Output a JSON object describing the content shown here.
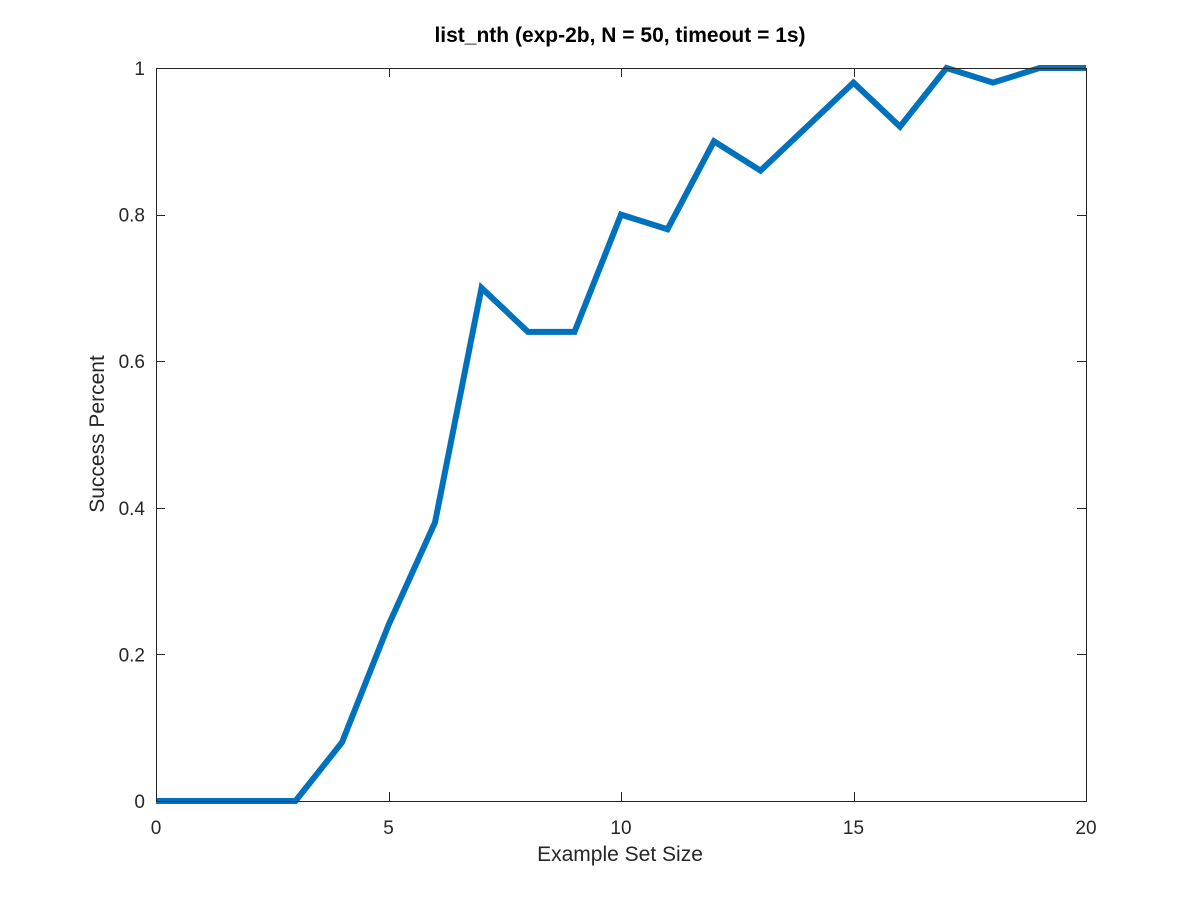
{
  "chart_data": {
    "type": "line",
    "title": "list_nth (exp-2b, N = 50, timeout = 1s)",
    "xlabel": "Example Set Size",
    "ylabel": "Success Percent",
    "xlim": [
      0,
      20
    ],
    "ylim": [
      0,
      1
    ],
    "x_ticks": [
      0,
      5,
      10,
      15,
      20
    ],
    "x_tick_labels": [
      "0",
      "5",
      "10",
      "15",
      "20"
    ],
    "y_ticks": [
      0,
      0.2,
      0.4,
      0.6,
      0.8,
      1
    ],
    "y_tick_labels": [
      "0",
      "0.2",
      "0.4",
      "0.6",
      "0.8",
      "1"
    ],
    "grid": false,
    "legend": "none",
    "series": [
      {
        "color": "#0072bd",
        "x": [
          0,
          1,
          2,
          3,
          4,
          5,
          6,
          7,
          8,
          9,
          10,
          11,
          12,
          13,
          14,
          15,
          16,
          17,
          18,
          19,
          20
        ],
        "y": [
          0,
          0,
          0,
          0,
          0.08,
          0.24,
          0.38,
          0.7,
          0.64,
          0.64,
          0.8,
          0.78,
          0.9,
          0.86,
          0.92,
          0.98,
          0.92,
          1.0,
          0.98,
          1.0,
          1.0
        ]
      }
    ]
  }
}
